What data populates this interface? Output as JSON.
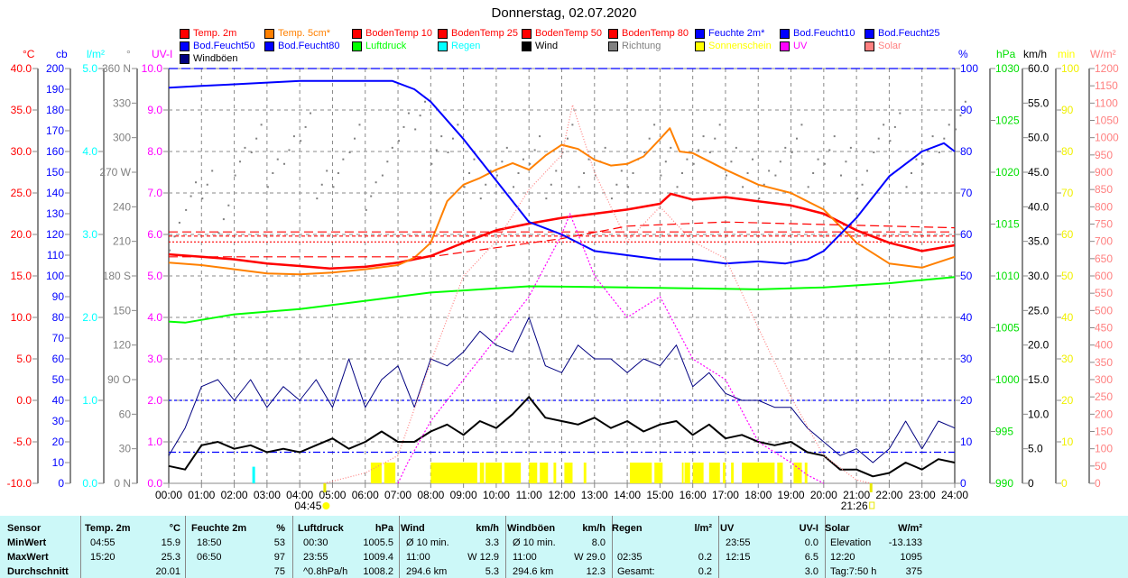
{
  "title": "Donnerstag, 02.07.2020",
  "legend": [
    {
      "label": "Temp. 2m",
      "color": "#ff0000"
    },
    {
      "label": "Temp. 5cm*",
      "color": "#ff8000"
    },
    {
      "label": "BodenTemp 10",
      "color": "#ff0000"
    },
    {
      "label": "BodenTemp 25",
      "color": "#ff0000"
    },
    {
      "label": "BodenTemp 50",
      "color": "#ff0000"
    },
    {
      "label": "BodenTemp 80",
      "color": "#ff0000"
    },
    {
      "label": "Feuchte 2m*",
      "color": "#0000ff"
    },
    {
      "label": "Bod.Feucht10",
      "color": "#0000ff"
    },
    {
      "label": "Bod.Feucht25",
      "color": "#0000ff"
    },
    {
      "label": "Bod.Feucht50",
      "color": "#0000ff"
    },
    {
      "label": "Bod.Feucht80",
      "color": "#0000ff"
    },
    {
      "label": "Luftdruck",
      "color": "#00ff00"
    },
    {
      "label": "Regen",
      "color": "#00ffff"
    },
    {
      "label": "Wind",
      "color": "#000000"
    },
    {
      "label": "Richtung",
      "color": "#808080"
    },
    {
      "label": "Sonnenschein",
      "color": "#ffff00"
    },
    {
      "label": "UV",
      "color": "#ff00ff"
    },
    {
      "label": "Solar",
      "color": "#ff8080"
    },
    {
      "label": "Windböen",
      "color": "#000080"
    }
  ],
  "chart_data": {
    "type": "line",
    "title": "Donnerstag, 02.07.2020",
    "x_ticks": [
      "00:00",
      "01:00",
      "02:00",
      "03:00",
      "04:00",
      "05:00",
      "06:00",
      "07:00",
      "08:00",
      "09:00",
      "10:00",
      "11:00",
      "12:00",
      "13:00",
      "14:00",
      "15:00",
      "16:00",
      "17:00",
      "18:00",
      "19:00",
      "20:00",
      "21:00",
      "22:00",
      "23:00",
      "24:00"
    ],
    "xlim": [
      0,
      24
    ],
    "axes": {
      "temp": {
        "unit": "°C",
        "color": "#ff0000",
        "ylim": [
          -10,
          40
        ],
        "ticks": [
          "40.0",
          "35.0",
          "30.0",
          "25.0",
          "20.0",
          "15.0",
          "10.0",
          "5.0",
          "0.0",
          "-5.0",
          "-10.0"
        ]
      },
      "cb": {
        "unit": "cb",
        "color": "#0000ff",
        "ylim": [
          0,
          200
        ],
        "ticks": [
          "200",
          "190",
          "180",
          "170",
          "160",
          "150",
          "140",
          "130",
          "120",
          "110",
          "100",
          "90",
          "80",
          "70",
          "60",
          "50",
          "40",
          "30",
          "20",
          "10",
          "0"
        ]
      },
      "rain": {
        "unit": "l/m²",
        "color": "#00ffff",
        "ylim": [
          0,
          5
        ],
        "ticks": [
          "5.0",
          "4.0",
          "3.0",
          "2.0",
          "1.0",
          "0.0"
        ]
      },
      "dir": {
        "unit": "°",
        "color": "#808080",
        "ylim": [
          0,
          360
        ],
        "ticks": [
          "360 N",
          "330",
          "300",
          "270 W",
          "240",
          "210",
          "180 S",
          "150",
          "120",
          "90 O",
          "60",
          "30",
          "0 N"
        ]
      },
      "uv": {
        "unit": "UV-I",
        "color": "#ff00ff",
        "ylim": [
          0,
          10
        ],
        "ticks": [
          "10.0",
          "9.0",
          "8.0",
          "7.0",
          "6.0",
          "5.0",
          "4.0",
          "3.0",
          "2.0",
          "1.0",
          "0.0"
        ]
      },
      "hum": {
        "unit": "%",
        "color": "#0000ff",
        "ylim": [
          0,
          100
        ],
        "ticks": [
          "100",
          "90",
          "80",
          "70",
          "60",
          "50",
          "40",
          "30",
          "20",
          "10",
          "0"
        ]
      },
      "press": {
        "unit": "hPa",
        "color": "#00e000",
        "ylim": [
          990,
          1030
        ],
        "ticks": [
          "1030",
          "1025",
          "1020",
          "1015",
          "1010",
          "1005",
          "1000",
          "995",
          "990"
        ]
      },
      "wind": {
        "unit": "km/h",
        "color": "#000000",
        "ylim": [
          0,
          60
        ],
        "ticks": [
          "60.0",
          "55.0",
          "50.0",
          "45.0",
          "40.0",
          "35.0",
          "30.0",
          "25.0",
          "20.0",
          "15.0",
          "10.0",
          "5.0",
          "0"
        ]
      },
      "sun": {
        "unit": "min",
        "color": "#e8e800",
        "ylim": [
          0,
          100
        ],
        "ticks": [
          "100",
          "90",
          "80",
          "70",
          "60",
          "50",
          "40",
          "30",
          "20",
          "10",
          "0"
        ]
      },
      "solar": {
        "unit": "W/m²",
        "color": "#ff8080",
        "ylim": [
          0,
          1200
        ],
        "ticks": [
          "1200",
          "1150",
          "1100",
          "1050",
          "1000",
          "950",
          "900",
          "850",
          "800",
          "750",
          "700",
          "650",
          "600",
          "550",
          "500",
          "450",
          "400",
          "350",
          "300",
          "250",
          "200",
          "150",
          "100",
          "50",
          "0"
        ]
      }
    },
    "series": [
      {
        "name": "Temp. 2m",
        "axis": "temp",
        "color": "#ff0000",
        "width": 2.5,
        "x": [
          0,
          1,
          2,
          3,
          4,
          4.92,
          6,
          7,
          8,
          9,
          10,
          11,
          12,
          13,
          14,
          15,
          15.33,
          16,
          17,
          18,
          19,
          20,
          21,
          22,
          23,
          24
        ],
        "y": [
          17.6,
          17.3,
          17.0,
          16.5,
          16.2,
          15.9,
          16.1,
          16.6,
          17.4,
          19.0,
          20.5,
          21.3,
          22.0,
          22.5,
          23.0,
          23.7,
          24.9,
          24.2,
          24.5,
          24.0,
          23.5,
          22.5,
          20.5,
          19.0,
          18.0,
          18.7
        ]
      },
      {
        "name": "Temp. 5cm*",
        "axis": "temp",
        "color": "#ff8000",
        "width": 2,
        "x": [
          0,
          1,
          2,
          3,
          4,
          5,
          6,
          7,
          7.5,
          8,
          8.5,
          9,
          9.5,
          10,
          10.5,
          11,
          11.5,
          12,
          12.5,
          13,
          13.5,
          14,
          14.5,
          15,
          15.3,
          15.6,
          16,
          17,
          18,
          19,
          20,
          21,
          22,
          23,
          24
        ],
        "y": [
          16.6,
          16.3,
          15.8,
          15.3,
          15.2,
          15.4,
          15.8,
          16.3,
          17.2,
          19.0,
          24.0,
          26.0,
          26.8,
          27.8,
          28.6,
          27.8,
          29.5,
          30.8,
          30.3,
          29.0,
          28.3,
          28.5,
          29.4,
          31.5,
          32.8,
          30.0,
          29.8,
          27.8,
          26.0,
          25.0,
          23.0,
          19.0,
          16.5,
          16.0,
          17.3
        ]
      },
      {
        "name": "BodenTemp 10",
        "axis": "temp",
        "color": "#ff0000",
        "dash": "10,5",
        "x": [
          0,
          8,
          12,
          14,
          17,
          24
        ],
        "y": [
          17.3,
          17.3,
          19.5,
          21.0,
          21.5,
          20.8
        ]
      },
      {
        "name": "BodenTemp 25",
        "axis": "temp",
        "color": "#ff0000",
        "dash": "10,5",
        "x": [
          0,
          24
        ],
        "y": [
          20.3,
          20.3
        ]
      },
      {
        "name": "BodenTemp 50",
        "axis": "temp",
        "color": "#ff0000",
        "dash": "4,3",
        "x": [
          0,
          24
        ],
        "y": [
          19.8,
          19.8
        ]
      },
      {
        "name": "BodenTemp 80",
        "axis": "temp",
        "color": "#ff0000",
        "dash": "2,2",
        "x": [
          0,
          24
        ],
        "y": [
          19.1,
          19.1
        ]
      },
      {
        "name": "Feuchte 2m*",
        "axis": "hum",
        "color": "#0000ff",
        "width": 2,
        "x": [
          0,
          1,
          2,
          3,
          4,
          5,
          6,
          6.83,
          7.5,
          8,
          9,
          10,
          11,
          12,
          13,
          14,
          15,
          16,
          17,
          18,
          18.83,
          19.5,
          20,
          21,
          22,
          23,
          23.67,
          24
        ],
        "y": [
          95.4,
          95.8,
          96.2,
          96.6,
          97,
          97,
          97,
          97,
          95,
          92,
          83,
          73,
          63,
          60,
          56,
          55,
          54,
          54,
          53,
          53.5,
          53,
          54,
          56,
          64,
          74,
          80,
          82,
          80
        ]
      },
      {
        "name": "Bod.Feucht10",
        "axis": "cb",
        "color": "#0000ff",
        "dash": "3,3",
        "x": [
          0,
          24
        ],
        "y": [
          40,
          40
        ]
      },
      {
        "name": "Bod.Feucht25",
        "axis": "cb",
        "color": "#0000ff",
        "dash": "8,3,2,3",
        "x": [
          0,
          24
        ],
        "y": [
          15,
          15
        ]
      },
      {
        "name": "Bod.Feucht50",
        "axis": "cb",
        "color": "#0000ff",
        "dash": "10,4",
        "x": [
          0,
          24
        ],
        "y": [
          200,
          200
        ]
      },
      {
        "name": "Luftdruck",
        "axis": "press",
        "color": "#00ff00",
        "width": 2,
        "x": [
          0,
          0.5,
          2,
          4,
          6,
          8,
          10,
          11,
          14,
          16,
          18,
          20,
          22,
          23,
          24
        ],
        "y": [
          1005.6,
          1005.5,
          1006.3,
          1006.8,
          1007.6,
          1008.4,
          1008.8,
          1009.0,
          1008.9,
          1008.8,
          1008.7,
          1008.9,
          1009.3,
          1009.6,
          1009.9
        ]
      },
      {
        "name": "Wind",
        "axis": "wind",
        "color": "#000000",
        "width": 2,
        "x": "half-hourly",
        "y": [
          2.5,
          2.0,
          5.5,
          6.0,
          5.0,
          5.5,
          4.5,
          5.0,
          4.5,
          5.5,
          6.5,
          5.0,
          6.0,
          7.5,
          6.0,
          6.0,
          7.5,
          8.5,
          7.0,
          9.0,
          8.0,
          10.0,
          12.5,
          9.5,
          9.0,
          8.5,
          9.5,
          8.0,
          9.0,
          7.5,
          8.5,
          9.0,
          7.0,
          8.5,
          6.5,
          7.0,
          6.0,
          5.5,
          6.0,
          4.5,
          4.0,
          2.0,
          2.0,
          1.0,
          1.5,
          3.0,
          2.0,
          3.5,
          3.0
        ]
      },
      {
        "name": "Windböen",
        "axis": "wind",
        "color": "#000080",
        "width": 1,
        "x": "half-hourly",
        "y": [
          4,
          8,
          14,
          15,
          12,
          15,
          11,
          14,
          12,
          15,
          11,
          18,
          11,
          15,
          17,
          11,
          18,
          17,
          19,
          22,
          20,
          19,
          24,
          17,
          16,
          20,
          18,
          18,
          16,
          18,
          17,
          20,
          14,
          16,
          13,
          12,
          12,
          11,
          11,
          8,
          6,
          4,
          5,
          3,
          5,
          9,
          5,
          9,
          8
        ]
      },
      {
        "name": "Solar",
        "axis": "solar",
        "color": "#ff8080",
        "dash": "1,2",
        "x": [
          4.75,
          6,
          7,
          8,
          9,
          10,
          11,
          12,
          12.33,
          13,
          14,
          15,
          16,
          17,
          18,
          19,
          20,
          21,
          21.43
        ],
        "y": [
          0,
          30,
          80,
          350,
          600,
          700,
          850,
          950,
          1095,
          900,
          700,
          800,
          700,
          650,
          450,
          250,
          80,
          10,
          0
        ]
      },
      {
        "name": "UV",
        "axis": "uv",
        "color": "#ff00ff",
        "dash": "2,2",
        "x": [
          7,
          7.3,
          8,
          9,
          10,
          11,
          12,
          12.25,
          13,
          14,
          15,
          16,
          17,
          18,
          19,
          19.5,
          20
        ],
        "y": [
          0,
          0.5,
          1.5,
          2.5,
          3.5,
          4.5,
          6.0,
          6.5,
          5.0,
          4.0,
          4.5,
          3.0,
          2.5,
          1.0,
          0.5,
          0.2,
          0
        ]
      }
    ],
    "direction": {
      "name": "Richtung",
      "axis": "dir",
      "values": [
        215,
        250,
        260,
        230,
        280,
        300,
        270,
        290,
        310,
        260,
        270,
        300,
        250,
        280,
        310,
        320,
        290,
        300,
        270,
        260,
        280,
        270,
        290,
        260,
        300,
        270,
        280,
        260,
        270,
        300,
        280,
        270,
        290,
        300,
        280,
        270,
        260,
        280,
        300,
        270,
        290,
        280,
        260,
        300,
        310,
        270,
        290,
        300,
        320
      ]
    },
    "rain": {
      "name": "Regen",
      "axis": "rain",
      "events": [
        {
          "time": 2.58,
          "value": 0.2
        }
      ]
    },
    "sunshine": {
      "name": "Sonnenschein",
      "axis": "sun",
      "value": 5,
      "periods": [
        [
          6.17,
          6.5
        ],
        [
          6.58,
          6.92
        ],
        [
          8.0,
          9.42
        ],
        [
          9.5,
          9.63
        ],
        [
          9.67,
          10.17
        ],
        [
          10.25,
          10.75
        ],
        [
          11.0,
          11.25
        ],
        [
          11.33,
          11.58
        ],
        [
          11.75,
          11.83
        ],
        [
          12.08,
          12.33
        ],
        [
          12.67,
          12.75
        ],
        [
          14.08,
          14.75
        ],
        [
          14.83,
          15.08
        ],
        [
          15.67,
          15.72
        ],
        [
          15.75,
          15.92
        ],
        [
          16.0,
          16.33
        ],
        [
          16.5,
          16.83
        ],
        [
          16.92,
          17.0
        ],
        [
          17.17,
          17.25
        ],
        [
          17.5,
          18.5
        ],
        [
          18.58,
          18.75
        ],
        [
          19.08,
          19.33
        ],
        [
          19.42,
          19.5
        ]
      ]
    },
    "annotations": [
      {
        "label": "04:45",
        "time": 4.75,
        "kind": "sunrise"
      },
      {
        "label": "21:26",
        "time": 21.43,
        "kind": "sunset"
      }
    ]
  },
  "stats": {
    "header": [
      "Sensor",
      "Temp. 2m",
      "°C",
      "Feuchte 2m",
      "%",
      "Luftdruck",
      "hPa",
      "Wind",
      "km/h",
      "Windböen",
      "km/h",
      "Regen",
      "l/m²",
      "UV",
      "UV-I",
      "Solar",
      "W/m²"
    ],
    "rows": [
      {
        "label": "MinWert",
        "cells": [
          "04:55",
          "15.9",
          "18:50",
          "53",
          "00:30",
          "1005.5",
          "Ø 10 min.",
          "3.3",
          "Ø 10 min.",
          "8.0",
          "",
          "",
          "23:55",
          "0.0",
          "Elevation",
          "-13.133"
        ]
      },
      {
        "label": "MaxWert",
        "cells": [
          "15:20",
          "25.3",
          "06:50",
          "97",
          "23:55",
          "1009.4",
          "11:00",
          "W 12.9",
          "11:00",
          "W 29.0",
          "02:35",
          "0.2",
          "12:15",
          "6.5",
          "12:20",
          "1095"
        ]
      },
      {
        "label": "Durchschnitt",
        "cells": [
          "",
          "20.01",
          "",
          "75",
          "^0.8hPa/h",
          "1008.2",
          "294.6 km",
          "5.3",
          "294.6 km",
          "12.3",
          "Gesamt:",
          "0.2",
          "",
          "3.0",
          "Tag:7:50 h",
          "375"
        ]
      }
    ]
  }
}
